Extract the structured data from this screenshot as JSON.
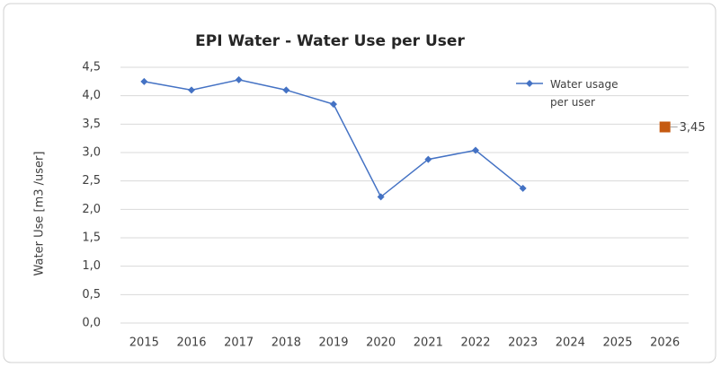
{
  "chart_data": {
    "type": "line",
    "title": "EPI Water -  Water Use per User",
    "y_label": "Water Use [m3 /user]",
    "categories": [
      "2015",
      "2016",
      "2017",
      "2018",
      "2019",
      "2020",
      "2021",
      "2022",
      "2023",
      "2024",
      "2025",
      "2026"
    ],
    "series": [
      {
        "name": "Water usage per user",
        "color": "#4472c4",
        "marker": "diamond",
        "values": [
          4.25,
          4.1,
          4.28,
          4.1,
          3.85,
          2.22,
          2.88,
          3.04,
          2.37,
          null,
          null,
          null
        ]
      },
      {
        "color": "#c55a11",
        "marker": "square",
        "values": [
          null,
          null,
          null,
          null,
          null,
          null,
          null,
          null,
          null,
          null,
          null,
          3.45
        ],
        "value_labels": [
          null,
          null,
          null,
          null,
          null,
          null,
          null,
          null,
          null,
          null,
          null,
          "3,45"
        ]
      }
    ],
    "ylim": [
      0,
      4.5
    ],
    "yticks": [
      {
        "value": 0,
        "label": "0,0"
      },
      {
        "value": 0.5,
        "label": "0,5"
      },
      {
        "value": 1,
        "label": "1,0"
      },
      {
        "value": 1.5,
        "label": "1,5"
      },
      {
        "value": 2,
        "label": "2,0"
      },
      {
        "value": 2.5,
        "label": "2,5"
      },
      {
        "value": 3,
        "label": "3,0"
      },
      {
        "value": 3.5,
        "label": "3,5"
      },
      {
        "value": 4,
        "label": "4,0"
      },
      {
        "value": 4.5,
        "label": "4,5"
      }
    ],
    "grid": true,
    "legend": "upper right"
  }
}
